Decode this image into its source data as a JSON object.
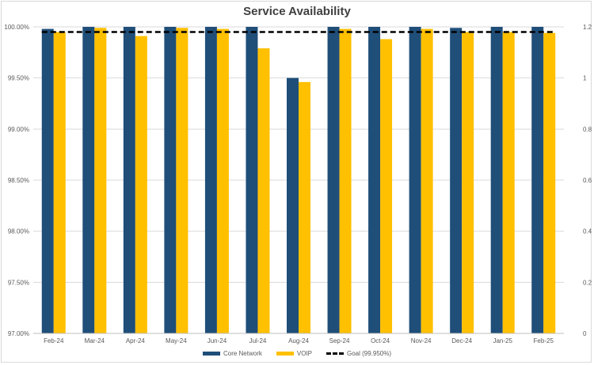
{
  "chart_data": {
    "type": "bar",
    "title": "Service Availability",
    "categories": [
      "Feb-24",
      "Mar-24",
      "Apr-24",
      "May-24",
      "Jun-24",
      "Jul-24",
      "Aug-24",
      "Sep-24",
      "Oct-24",
      "Nov-24",
      "Dec-24",
      "Jan-25",
      "Feb-25"
    ],
    "series": [
      {
        "name": "Core Network",
        "color": "#1f4e79",
        "values": [
          99.98,
          100.0,
          100.0,
          100.0,
          100.0,
          100.0,
          99.5,
          100.0,
          100.0,
          100.0,
          99.99,
          100.0,
          100.0
        ]
      },
      {
        "name": "VOIP",
        "color": "#ffc000",
        "values": [
          99.95,
          99.99,
          99.91,
          99.99,
          99.98,
          99.79,
          99.46,
          99.98,
          99.88,
          99.98,
          99.95,
          99.95,
          99.94
        ]
      }
    ],
    "goal": {
      "name": "Goal (99.950%)",
      "value": 99.95,
      "color": "#000000"
    },
    "ylim": [
      97.0,
      100.0
    ],
    "yticks": [
      "97.00%",
      "97.50%",
      "98.00%",
      "98.50%",
      "99.00%",
      "99.50%",
      "100.00%"
    ],
    "y2lim": [
      0,
      1.2
    ],
    "y2ticks": [
      "0",
      "0.2",
      "0.4",
      "0.6",
      "0.8",
      "1",
      "1.2"
    ],
    "grid": true,
    "legend": "bottom"
  }
}
